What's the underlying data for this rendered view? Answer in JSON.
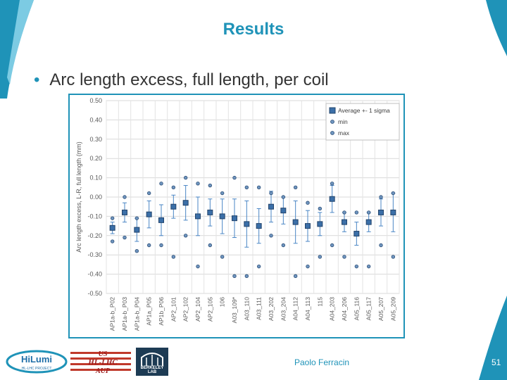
{
  "slide": {
    "title": "Results",
    "bullet": "Arc length excess, full length, per coil",
    "author": "Paolo Ferracin",
    "page_number": "51"
  },
  "logos": {
    "hilumi": {
      "main": "HiLumi",
      "sub": "HL-LHC PROJECT"
    },
    "us": {
      "line1": "US",
      "line2": "HL-LHC",
      "line3": "AUP"
    },
    "berkeley": {
      "text": "BERKELEY LAB"
    }
  },
  "colors": {
    "accent": "#1f93b8",
    "box_fill": "#3b6fa8",
    "error_bar": "#4a86c5",
    "marker": "#6f95bf"
  },
  "chart_data": {
    "type": "scatter",
    "title": "",
    "ylabel": "Arc length excess, L-R, full length (mm)",
    "xlabel": "",
    "ylim": [
      -0.5,
      0.5
    ],
    "yticks": [
      "0.50",
      "0.40",
      "0.30",
      "0.20",
      "0.10",
      "0.00",
      "-0.10",
      "-0.20",
      "-0.30",
      "-0.40",
      "-0.50"
    ],
    "grid": true,
    "legend_position": "top-right",
    "categories": [
      "AP1a-b_P02",
      "AP1a-b_P03",
      "AP1a-b_P04",
      "AP1a_P05",
      "AP1b_P06",
      "AP2_101",
      "AP2_102",
      "AP2_104",
      "AP2_105",
      "106",
      "A03_109*",
      "A03_110",
      "A03_111",
      "A03_202",
      "A03_204",
      "A04_112",
      "A04_113",
      "115",
      "A04_203",
      "A04_206",
      "A05_116",
      "A05_117",
      "A05_207",
      "A05_209"
    ],
    "series": [
      {
        "name": "Average +- 1 sigma",
        "values": [
          -0.16,
          -0.08,
          -0.17,
          -0.09,
          -0.12,
          -0.05,
          -0.03,
          -0.1,
          -0.08,
          -0.1,
          -0.11,
          -0.14,
          -0.15,
          -0.05,
          -0.07,
          -0.13,
          -0.15,
          -0.14,
          -0.01,
          -0.13,
          -0.19,
          -0.13,
          -0.08,
          -0.08
        ],
        "sigma": [
          0.03,
          0.05,
          0.06,
          0.07,
          0.08,
          0.06,
          0.09,
          0.1,
          0.07,
          0.09,
          0.1,
          0.12,
          0.09,
          0.08,
          0.07,
          0.11,
          0.08,
          0.06,
          0.07,
          0.05,
          0.06,
          0.05,
          0.07,
          0.1
        ]
      },
      {
        "name": "min",
        "values": [
          -0.23,
          -0.21,
          -0.28,
          -0.25,
          -0.25,
          -0.31,
          -0.2,
          -0.36,
          -0.25,
          -0.31,
          -0.41,
          -0.41,
          -0.36,
          -0.2,
          -0.25,
          -0.41,
          -0.36,
          -0.31,
          -0.25,
          -0.31,
          -0.36,
          -0.36,
          -0.25,
          -0.31
        ]
      },
      {
        "name": "max",
        "values": [
          -0.11,
          0.0,
          -0.11,
          0.02,
          0.07,
          0.05,
          0.1,
          0.07,
          0.06,
          0.02,
          0.1,
          0.05,
          0.05,
          0.02,
          0.0,
          0.05,
          -0.03,
          -0.06,
          0.07,
          -0.08,
          -0.08,
          -0.08,
          0.0,
          0.02
        ]
      }
    ]
  }
}
